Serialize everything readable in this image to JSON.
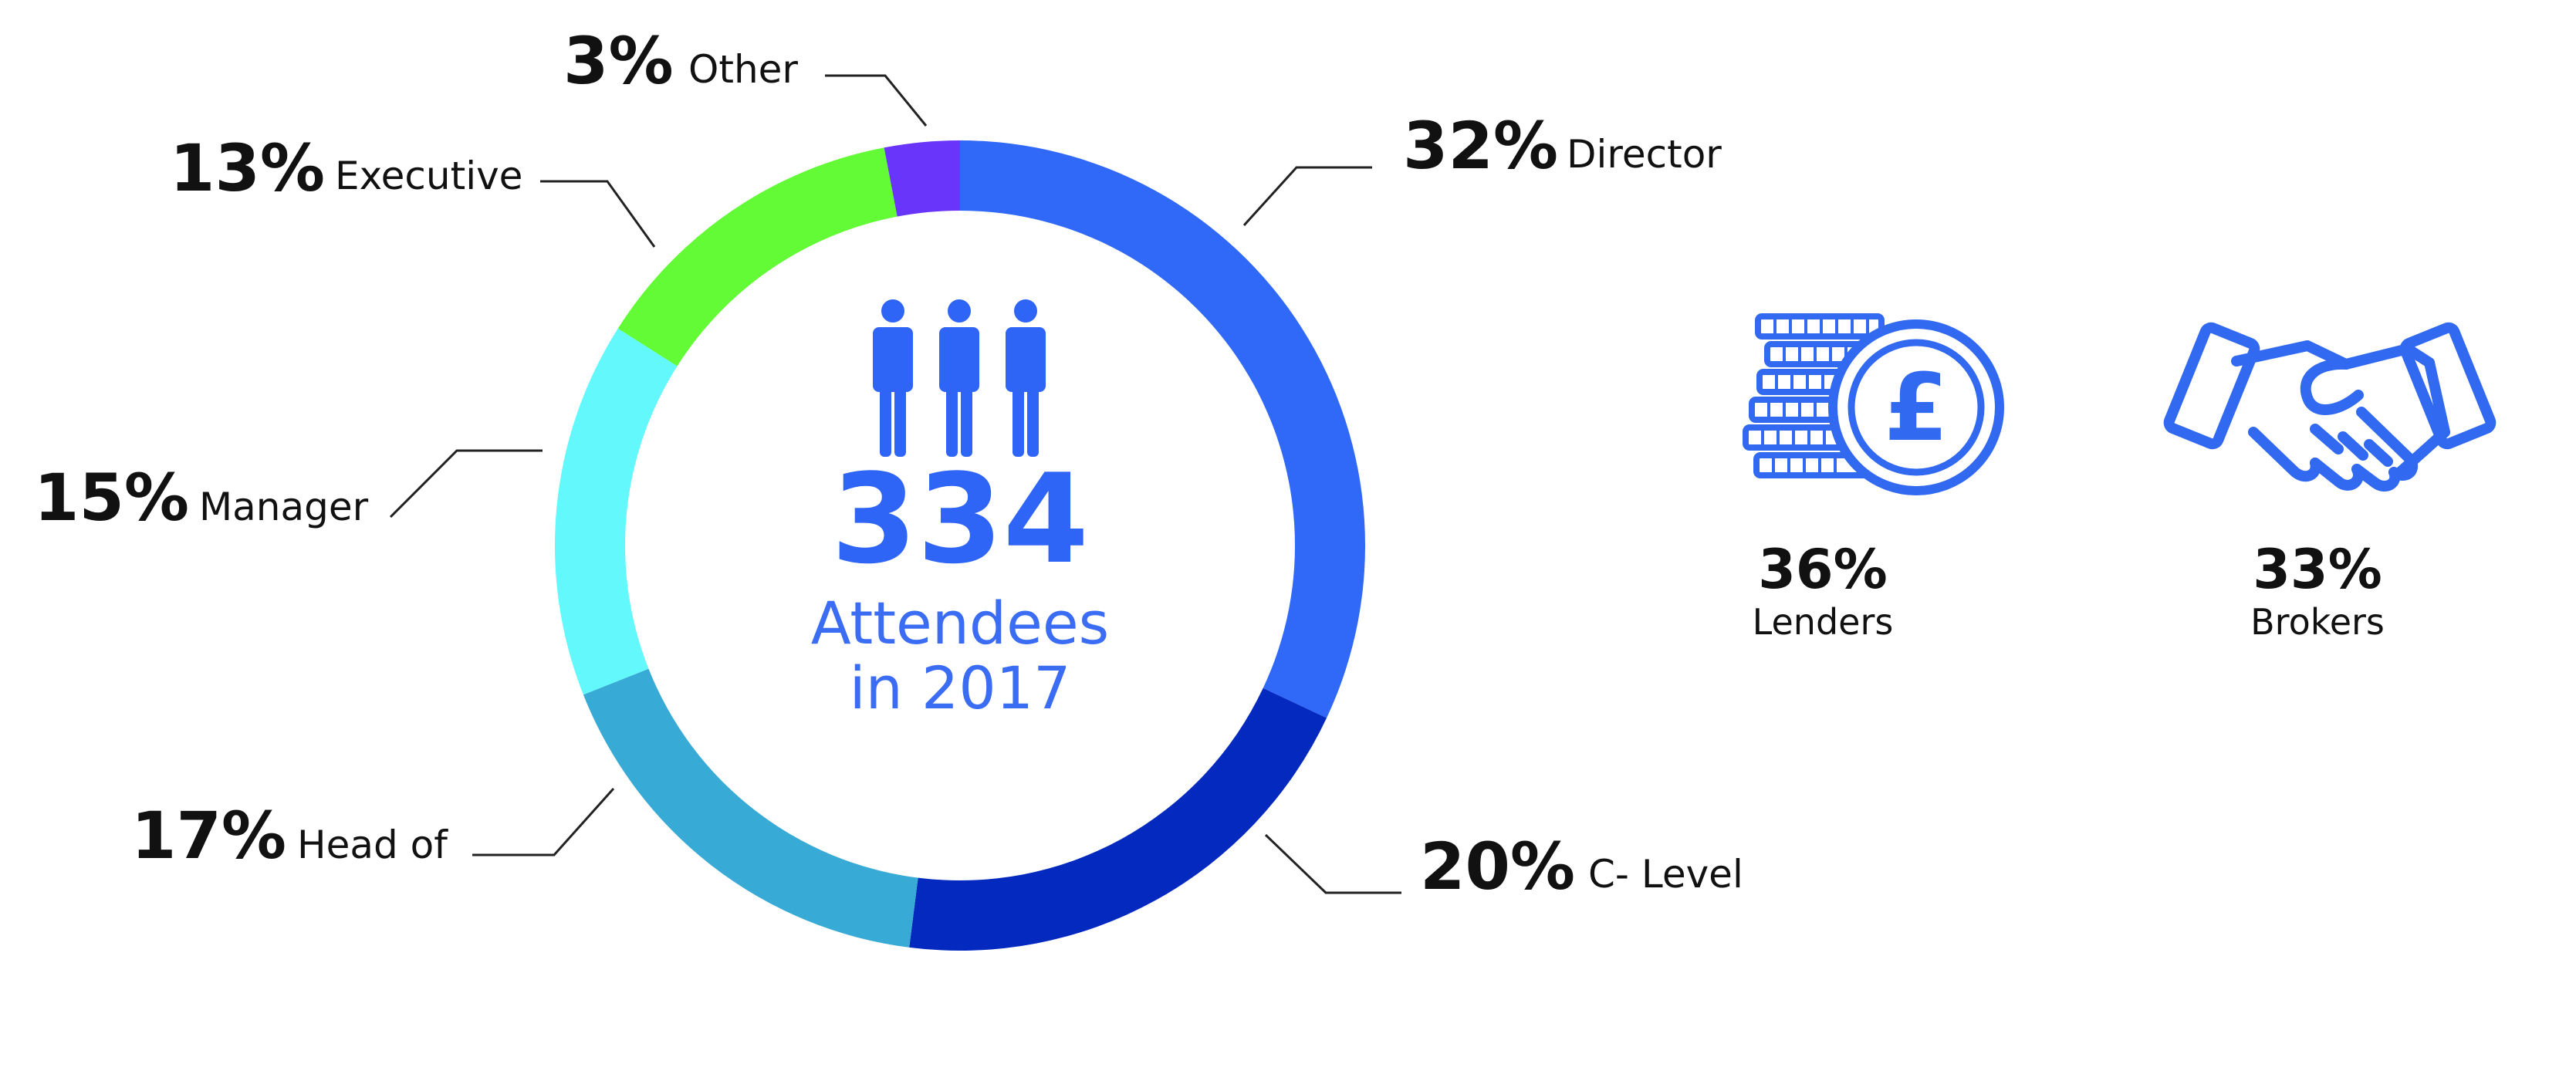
{
  "colors": {
    "accent": "#2f65f6",
    "icon": "#3169f0",
    "text": "#111111"
  },
  "chart_data": {
    "type": "pie",
    "donut": true,
    "center": {
      "value": "334",
      "line1": "Attendees",
      "line2": "in 2017",
      "icon": "people-icon"
    },
    "slices": [
      {
        "label": "Director",
        "value": 32,
        "pct_text": "32%",
        "color": "#3068f8"
      },
      {
        "label": "C- Level",
        "value": 20,
        "pct_text": "20%",
        "color": "#0329be"
      },
      {
        "label": "Head of",
        "value": 17,
        "pct_text": "17%",
        "color": "#38aad6"
      },
      {
        "label": "Manager",
        "value": 15,
        "pct_text": "15%",
        "color": "#62f8fc"
      },
      {
        "label": "Executive",
        "value": 13,
        "pct_text": "13%",
        "color": "#62fb36"
      },
      {
        "label": "Other",
        "value": 3,
        "pct_text": "3%",
        "color": "#6a35fa"
      }
    ]
  },
  "stats": [
    {
      "icon": "pound-coins-icon",
      "value": "36%",
      "label": "Lenders"
    },
    {
      "icon": "handshake-icon",
      "value": "33%",
      "label": "Brokers"
    }
  ]
}
